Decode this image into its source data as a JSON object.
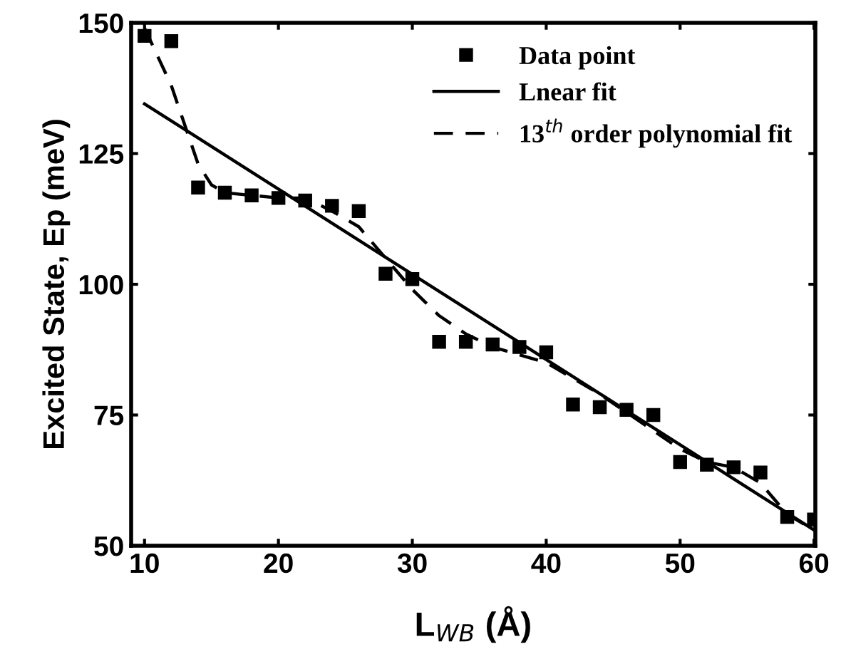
{
  "chart_data": {
    "type": "scatter",
    "xlabel": "L$_{WB}$ (Å)",
    "ylabel": "Excited State, Ep (meV)",
    "xlim": [
      9,
      60.1
    ],
    "ylim": [
      50,
      150
    ],
    "xticks": [
      10,
      20,
      30,
      40,
      50,
      60
    ],
    "yticks": [
      50,
      75,
      100,
      125,
      150
    ],
    "legend": "top right",
    "grid": false,
    "series": [
      {
        "name": "Data point",
        "marker": "square",
        "color": "#000000",
        "x": [
          10,
          12,
          14,
          16,
          18,
          20,
          22,
          24,
          26,
          28,
          30,
          32,
          34,
          36,
          38,
          40,
          42,
          44,
          46,
          48,
          50,
          52,
          54,
          56,
          58,
          60
        ],
        "values": [
          147.5,
          146.5,
          118.5,
          117.5,
          117,
          116.5,
          116,
          115,
          114,
          102,
          101,
          89,
          89,
          88.5,
          88,
          87,
          77,
          76.5,
          76,
          75,
          66,
          65.5,
          65,
          64,
          55.5,
          55
        ]
      },
      {
        "name": "Lnear fit",
        "type": "line",
        "line_style": "solid",
        "color": "#000000",
        "x": [
          10,
          60
        ],
        "values": [
          134.5,
          53
        ]
      },
      {
        "name": "13$^{th}$ order polynomial fit",
        "type": "line",
        "line_style": "dashed",
        "color": "#000000",
        "x": [
          10,
          12,
          14,
          15,
          16,
          18,
          20,
          22,
          24,
          26,
          28,
          30,
          32,
          34,
          36,
          38,
          40,
          42,
          44,
          46,
          48,
          50,
          52,
          54,
          56,
          58,
          60
        ],
        "values": [
          149,
          138,
          123,
          119,
          117.5,
          117,
          116.5,
          116.5,
          114,
          111,
          105,
          99,
          94,
          90.5,
          88,
          86.5,
          85,
          82,
          79,
          75.5,
          72,
          68.5,
          66,
          65,
          62,
          56,
          53
        ]
      }
    ]
  }
}
